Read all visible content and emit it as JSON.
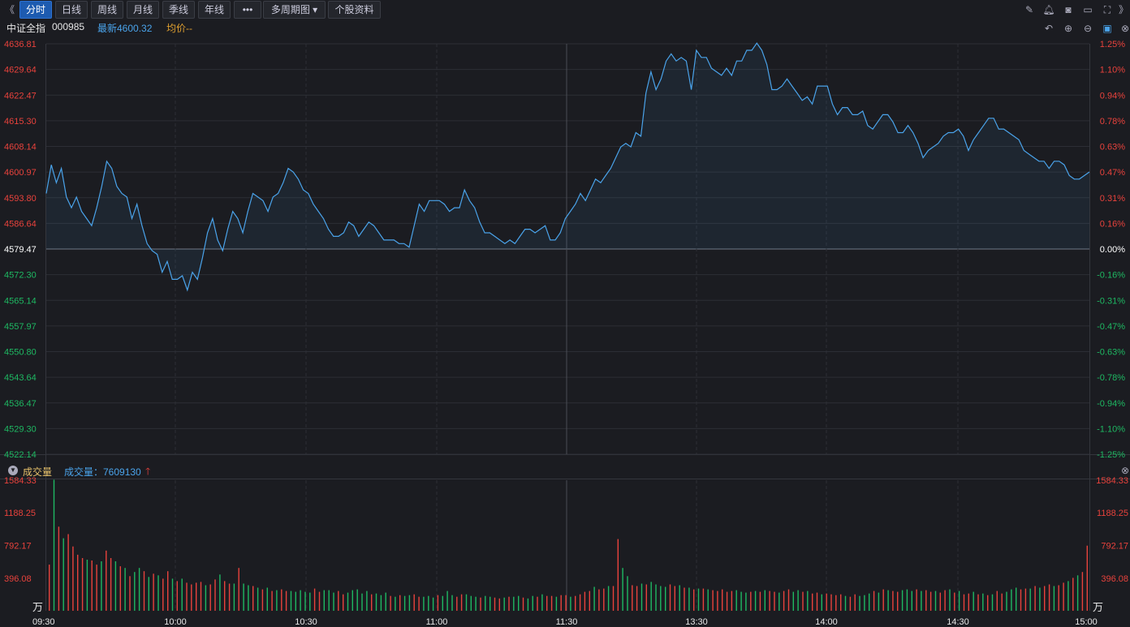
{
  "toolbar": {
    "collapse_left": "《",
    "buttons": [
      "分时",
      "日线",
      "周线",
      "月线",
      "季线",
      "年线",
      "•••",
      "多周期图 ▾",
      "个股资料"
    ],
    "active": "分时",
    "collapse_right": "》"
  },
  "info": {
    "name": "中证全指",
    "code": "000985",
    "latest": "最新4600.32",
    "avg": "均价--"
  },
  "volume_header": {
    "title": "成交量",
    "label": "成交量：7609130",
    "unit": "万"
  },
  "chart_data": [
    {
      "type": "line",
      "name": "price",
      "x_ticks": [
        "09:30",
        "10:00",
        "10:30",
        "11:00",
        "11:30",
        "13:30",
        "14:00",
        "14:30",
        "15:00"
      ],
      "y_ticks_left": [
        "4636.81",
        "4629.64",
        "4622.47",
        "4615.30",
        "4608.14",
        "4600.97",
        "4593.80",
        "4586.64",
        "4579.47",
        "4572.30",
        "4565.14",
        "4557.97",
        "4550.80",
        "4543.64",
        "4536.47",
        "4529.30",
        "4522.14"
      ],
      "y_ticks_right": [
        "1.25%",
        "1.10%",
        "0.94%",
        "0.78%",
        "0.63%",
        "0.47%",
        "0.31%",
        "0.16%",
        "0.00%",
        "-0.16%",
        "-0.31%",
        "-0.47%",
        "-0.63%",
        "-0.78%",
        "-0.94%",
        "-1.10%",
        "-1.25%"
      ],
      "ylim": [
        4522.14,
        4636.81
      ],
      "prev_close": 4579.47,
      "colors": {
        "line": "#4aa3ea",
        "up": "#e8423c",
        "down": "#1eb862",
        "flat": "#ffffff"
      },
      "values": [
        4595,
        4603,
        4598,
        4602,
        4594,
        4591,
        4594,
        4590,
        4588,
        4586,
        4591,
        4597,
        4604,
        4602,
        4597,
        4595,
        4594,
        4588,
        4592,
        4586,
        4581,
        4579,
        4578,
        4573,
        4576,
        4571,
        4571,
        4572,
        4568,
        4573,
        4571,
        4577,
        4584,
        4588,
        4582,
        4579,
        4585,
        4590,
        4588,
        4584,
        4590,
        4595,
        4594,
        4593,
        4590,
        4594,
        4595,
        4598,
        4602,
        4601,
        4599,
        4596,
        4595,
        4592,
        4590,
        4588,
        4585,
        4583,
        4583,
        4584,
        4587,
        4586,
        4583,
        4585,
        4587,
        4586,
        4584,
        4582,
        4582,
        4582,
        4581,
        4581,
        4580,
        4586,
        4592,
        4590,
        4593,
        4593,
        4593,
        4592,
        4590,
        4591,
        4591,
        4596,
        4593,
        4591,
        4587,
        4584,
        4584,
        4583,
        4582,
        4581,
        4582,
        4581,
        4583,
        4585,
        4585,
        4584,
        4585,
        4586,
        4582,
        4582,
        4584,
        4588,
        4590,
        4592,
        4595,
        4593,
        4596,
        4599,
        4598,
        4600,
        4602,
        4605,
        4608,
        4609,
        4608,
        4612,
        4611,
        4623,
        4629,
        4624,
        4627,
        4632,
        4634,
        4632,
        4633,
        4632,
        4624,
        4635,
        4633,
        4633,
        4630,
        4629,
        4628,
        4630,
        4628,
        4632,
        4632,
        4635,
        4635,
        4637,
        4635,
        4631,
        4624,
        4624,
        4625,
        4627,
        4625,
        4623,
        4621,
        4622,
        4620,
        4625,
        4625,
        4625,
        4620,
        4617,
        4619,
        4619,
        4617,
        4617,
        4618,
        4614,
        4613,
        4615,
        4617,
        4617,
        4615,
        4612,
        4612,
        4614,
        4612,
        4609,
        4605,
        4607,
        4608,
        4609,
        4611,
        4612,
        4612,
        4613,
        4611,
        4607,
        4610,
        4612,
        4614,
        4616,
        4616,
        4613,
        4613,
        4612,
        4611,
        4610,
        4607,
        4606,
        4605,
        4604,
        4604,
        4602,
        4604,
        4604,
        4603,
        4600,
        4599,
        4599,
        4600,
        4601
      ]
    },
    {
      "type": "bar",
      "name": "volume",
      "unit": "万",
      "y_ticks": [
        "1584.33",
        "1188.25",
        "792.17",
        "396.08"
      ],
      "ylim": [
        0,
        1584.33
      ],
      "colors": {
        "up": "#e8423c",
        "down": "#1eb862"
      },
      "up_flags": [
        1,
        0,
        1,
        0,
        1,
        1,
        1,
        1,
        0,
        1,
        1,
        0,
        1,
        1,
        0,
        1,
        0,
        1,
        0,
        0,
        1,
        0,
        1,
        0,
        1,
        1,
        0,
        1,
        0,
        1,
        1,
        1,
        1,
        0,
        1,
        1,
        0,
        1,
        1,
        0,
        1,
        0,
        0,
        1,
        0,
        1,
        0,
        1,
        0,
        1,
        1,
        0,
        0,
        0,
        0,
        0,
        1,
        1,
        0,
        0,
        0,
        1,
        1,
        0,
        0,
        0,
        0,
        0,
        1,
        0,
        0,
        0,
        1,
        0,
        1,
        0,
        0,
        1,
        1,
        0,
        0,
        0,
        1,
        0,
        0,
        0,
        1,
        1,
        0,
        0,
        0,
        1,
        0,
        0,
        1,
        1,
        0,
        1,
        0,
        0,
        1,
        0,
        0,
        1,
        0,
        1,
        1,
        0,
        1,
        1,
        0,
        1,
        1,
        1,
        1,
        0,
        1,
        1,
        0,
        1,
        1,
        0,
        0,
        1,
        1,
        0,
        1,
        0,
        0,
        0,
        0,
        1,
        1,
        0,
        1,
        0,
        1,
        0,
        1,
        0,
        1,
        1,
        1,
        1,
        1,
        0,
        0,
        0,
        1,
        0,
        1,
        0,
        1,
        1,
        0,
        1,
        1,
        0,
        0,
        1,
        0,
        1,
        1,
        0,
        1,
        1,
        1,
        1,
        0,
        1,
        1,
        0,
        0,
        0,
        1,
        0,
        1,
        0,
        1,
        1,
        0,
        0,
        0,
        1,
        0,
        1,
        1,
        0,
        1,
        1,
        0,
        1,
        0,
        1,
        1,
        0,
        1,
        0,
        1,
        0,
        1,
        1,
        0,
        0,
        0,
        1,
        1,
        0,
        1,
        0,
        1,
        1,
        0,
        1,
        1,
        0,
        1,
        0,
        1,
        1,
        1,
        0,
        1,
        1
      ],
      "values": [
        560,
        1590,
        1020,
        880,
        930,
        780,
        680,
        640,
        620,
        610,
        560,
        600,
        730,
        640,
        600,
        540,
        520,
        420,
        470,
        520,
        480,
        410,
        450,
        430,
        390,
        480,
        390,
        360,
        390,
        340,
        320,
        340,
        350,
        310,
        320,
        380,
        440,
        360,
        330,
        330,
        520,
        330,
        310,
        300,
        280,
        260,
        280,
        240,
        250,
        260,
        240,
        240,
        230,
        250,
        230,
        220,
        270,
        230,
        250,
        250,
        220,
        240,
        200,
        220,
        250,
        260,
        210,
        240,
        200,
        210,
        190,
        220,
        180,
        170,
        190,
        180,
        190,
        200,
        170,
        170,
        180,
        160,
        190,
        180,
        240,
        190,
        170,
        200,
        200,
        180,
        170,
        160,
        180,
        170,
        160,
        150,
        160,
        170,
        170,
        180,
        160,
        150,
        180,
        170,
        200,
        180,
        180,
        170,
        190,
        190,
        170,
        180,
        200,
        230,
        240,
        290,
        260,
        270,
        300,
        300,
        870,
        520,
        420,
        310,
        300,
        330,
        320,
        350,
        320,
        300,
        290,
        320,
        300,
        310,
        280,
        280,
        260,
        270,
        270,
        260,
        250,
        240,
        260,
        230,
        240,
        250,
        230,
        220,
        230,
        240,
        230,
        250,
        240,
        230,
        220,
        240,
        260,
        230,
        250,
        230,
        240,
        210,
        220,
        200,
        210,
        200,
        190,
        200,
        180,
        170,
        200,
        180,
        190,
        210,
        240,
        220,
        260,
        250,
        240,
        230,
        250,
        260,
        240,
        260,
        240,
        250,
        230,
        240,
        220,
        250,
        260,
        220,
        240,
        200,
        210,
        230,
        200,
        210,
        190,
        200,
        240,
        210,
        230,
        260,
        280,
        260,
        270,
        270,
        300,
        280,
        300,
        320,
        300,
        310,
        340,
        360,
        400,
        430,
        470,
        790
      ]
    }
  ]
}
